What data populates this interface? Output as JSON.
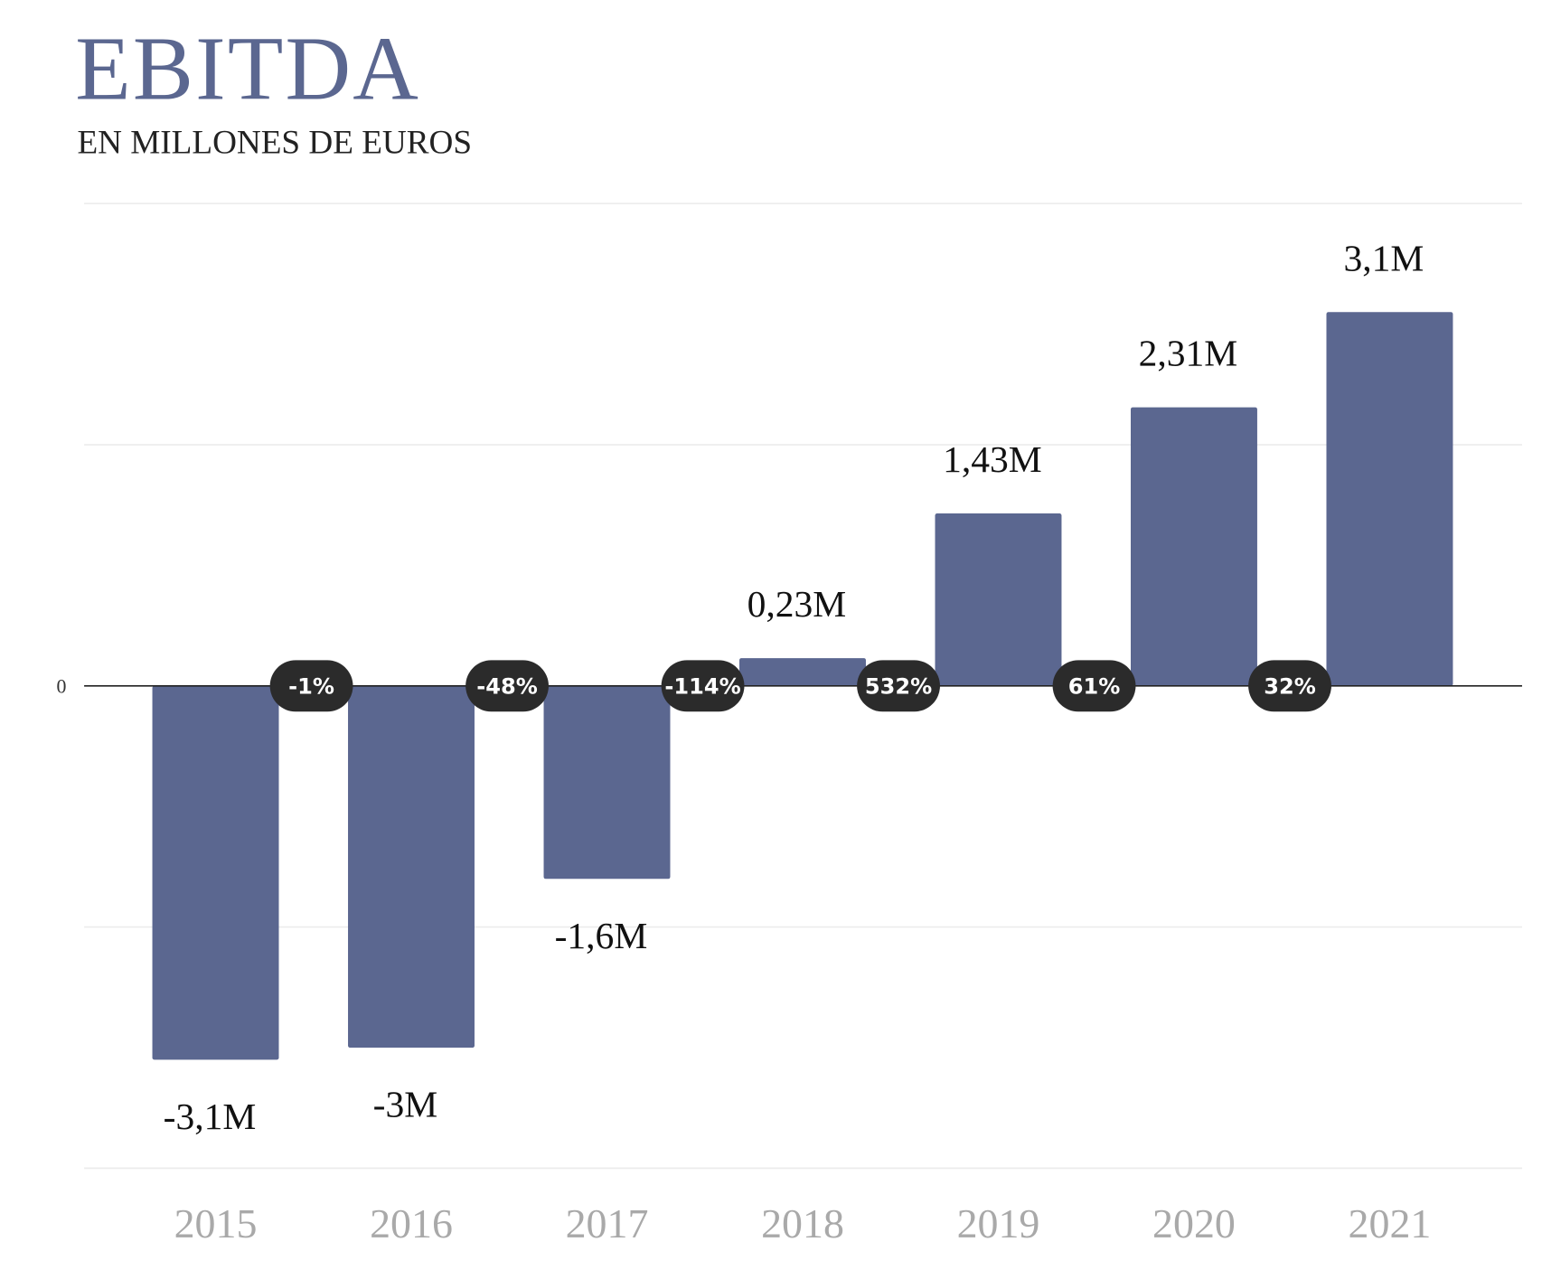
{
  "chart_data": {
    "type": "bar",
    "title": "EBITDA",
    "subtitle": "EN MILLONES DE EUROS",
    "categories": [
      "2015",
      "2016",
      "2017",
      "2018",
      "2019",
      "2020",
      "2021"
    ],
    "values": [
      -3.1,
      -3.0,
      -1.6,
      0.23,
      1.43,
      2.31,
      3.1
    ],
    "data_labels": [
      "-3,1M",
      "-3M",
      "-1,6M",
      "0,23M",
      "1,43M",
      "2,31M",
      "3,1M"
    ],
    "change_labels": [
      "-1%",
      "-48%",
      "-114%",
      "532%",
      "61%",
      "32%"
    ],
    "y_tick_labels": [
      "0"
    ],
    "ylim": [
      -4,
      4
    ],
    "grid": true,
    "colors": {
      "bar": "#5b6790",
      "title": "#5b6790",
      "badge": "#2b2b2b",
      "badge_text": "#ffffff",
      "year": "#a9a9a9"
    }
  }
}
